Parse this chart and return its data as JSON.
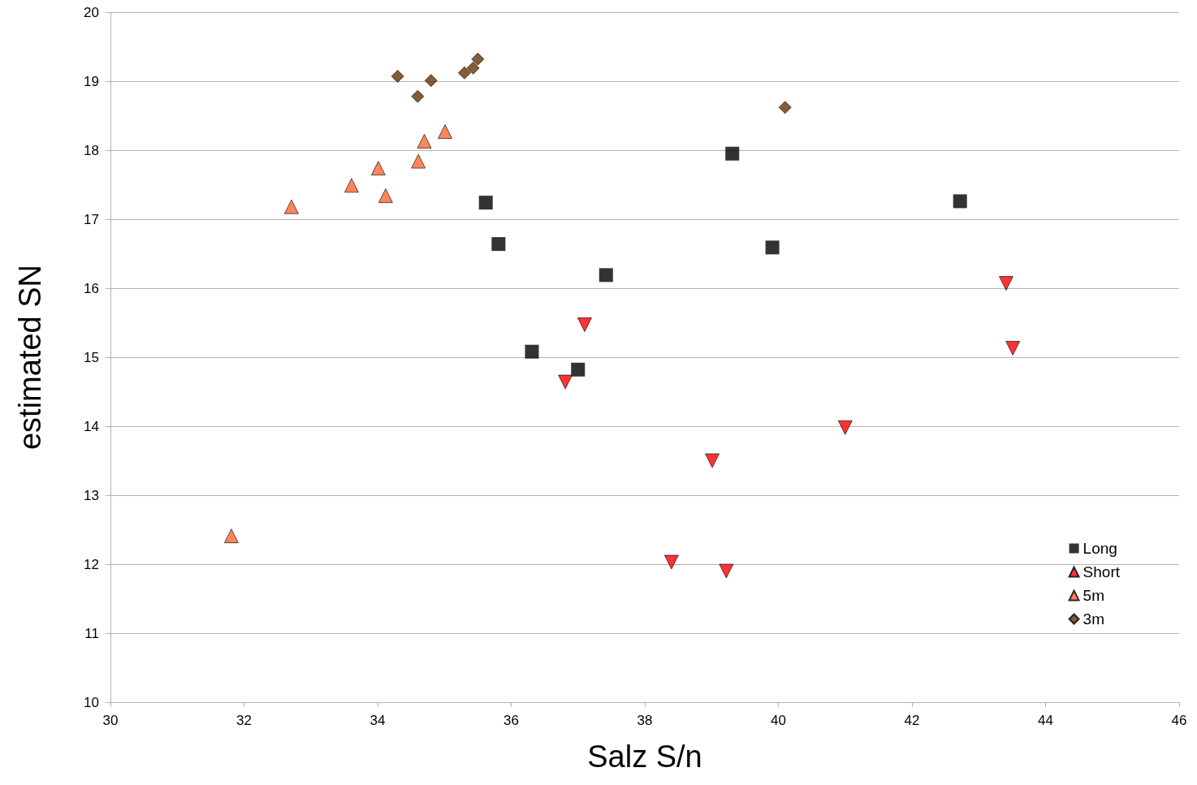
{
  "chart_data": {
    "type": "scatter",
    "xlabel": "Salz S/n",
    "ylabel": "estimated SN",
    "xlim": [
      30,
      46
    ],
    "xticks": [
      30,
      32,
      34,
      36,
      38,
      40,
      42,
      44,
      46
    ],
    "ylim": [
      10,
      20
    ],
    "yticks": [
      10,
      11,
      12,
      13,
      14,
      15,
      16,
      17,
      18,
      19,
      20
    ],
    "grid": "y",
    "legend": "bottom right",
    "series": [
      {
        "name": "Long",
        "color": "#000000",
        "marker": "square",
        "x": [
          35.62,
          35.81,
          37.42,
          36.31,
          37.0,
          39.31,
          39.91,
          42.72
        ],
        "values": [
          17.24,
          16.64,
          16.19,
          15.08,
          14.82,
          17.95,
          16.59,
          17.26
        ]
      },
      {
        "name": "Short",
        "color": "#ff0000",
        "marker": "triangle-down",
        "x": [
          37.1,
          36.81,
          39.01,
          38.4,
          39.22,
          41.0,
          43.41,
          43.51
        ],
        "values": [
          15.47,
          14.64,
          13.5,
          12.03,
          11.9,
          13.98,
          16.07,
          15.13
        ]
      },
      {
        "name": "5m",
        "color": "#ff6633",
        "marker": "triangle",
        "x": [
          31.81,
          32.71,
          33.61,
          34.01,
          34.12,
          34.61,
          34.7,
          35.01
        ],
        "values": [
          12.41,
          17.18,
          17.49,
          17.74,
          17.34,
          17.84,
          18.13,
          18.27
        ]
      },
      {
        "name": "3m",
        "color": "#663300",
        "marker": "diamond",
        "x": [
          34.3,
          34.6,
          34.8,
          35.3,
          35.43,
          35.5,
          40.1
        ],
        "values": [
          19.07,
          18.78,
          19.01,
          19.12,
          19.19,
          19.32,
          18.62
        ]
      }
    ]
  }
}
